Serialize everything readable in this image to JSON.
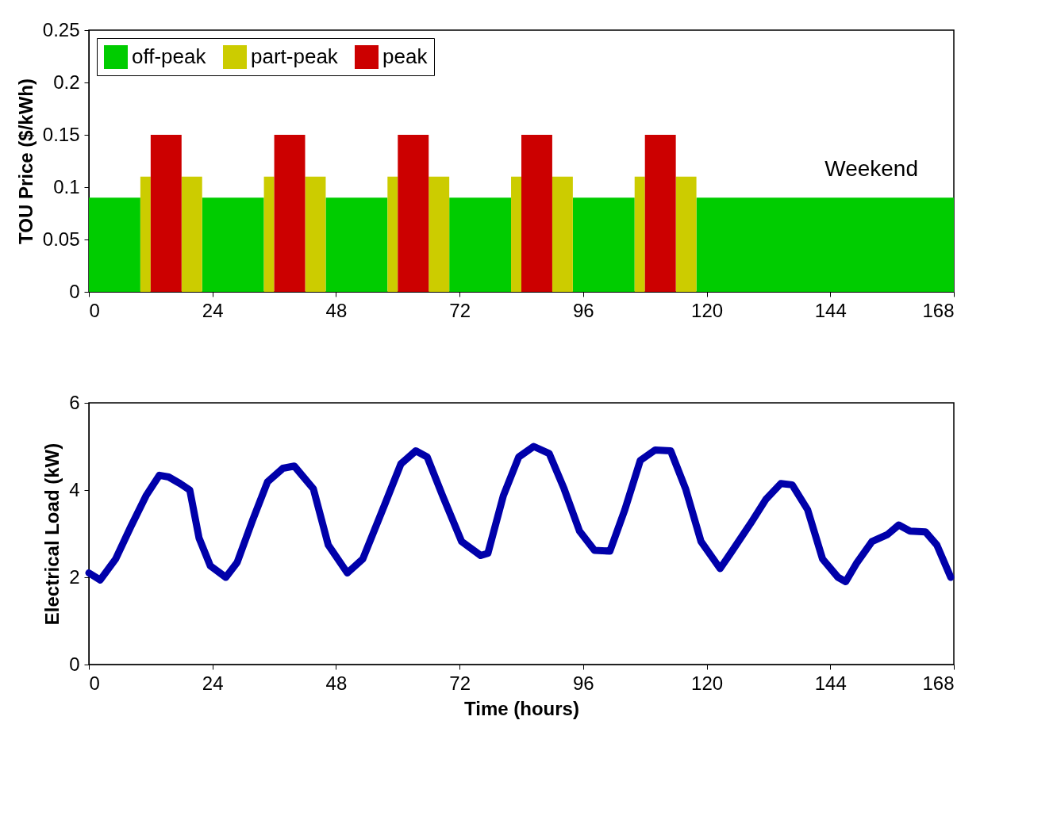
{
  "chart_data": [
    {
      "type": "histogram",
      "ylabel": "TOU Price ($/kWh)",
      "xlim": [
        0,
        168
      ],
      "xticks": [
        0,
        24,
        48,
        72,
        96,
        120,
        144,
        168
      ],
      "ylim": [
        0,
        0.25
      ],
      "yticks": [
        0,
        0.05,
        0.1,
        0.15,
        0.2,
        0.25
      ],
      "legend": "top left",
      "annotations": [
        "Weekend"
      ],
      "bins": [
        0,
        10,
        12,
        18,
        22,
        34,
        36,
        42,
        46,
        58,
        60,
        66,
        70,
        82,
        84,
        90,
        94,
        106,
        108,
        114,
        118,
        168
      ],
      "series": [
        {
          "name": "off-peak",
          "color": "#00cc00",
          "values": [
            0.09,
            null,
            null,
            null,
            0.09,
            null,
            null,
            null,
            0.09,
            null,
            null,
            null,
            0.09,
            null,
            null,
            null,
            0.09,
            null,
            null,
            null,
            0.09
          ]
        },
        {
          "name": "part-peak",
          "color": "#cccc00",
          "values": [
            null,
            0.11,
            null,
            0.11,
            null,
            0.11,
            null,
            0.11,
            null,
            0.11,
            null,
            0.11,
            null,
            0.11,
            null,
            0.11,
            null,
            0.11,
            null,
            0.11,
            null
          ]
        },
        {
          "name": "peak",
          "color": "#cc0000",
          "values": [
            null,
            null,
            0.15,
            null,
            null,
            null,
            0.15,
            null,
            null,
            null,
            0.15,
            null,
            null,
            null,
            0.15,
            null,
            null,
            null,
            0.15,
            null,
            null
          ]
        }
      ]
    },
    {
      "type": "line",
      "xlabel": "Time (hours)",
      "ylabel": "Electrical Load (kW)",
      "xlim": [
        0,
        168
      ],
      "xticks": [
        0,
        24,
        48,
        72,
        96,
        120,
        144,
        168
      ],
      "ylim": [
        0,
        6
      ],
      "yticks": [
        0,
        2,
        4,
        6
      ],
      "series": [
        {
          "color": "#0000aa",
          "x": [
            0,
            2.2,
            5.2,
            8.1,
            11.1,
            13.7,
            15.5,
            17.7,
            19.6,
            21.4,
            23.6,
            26.6,
            28.8,
            31.8,
            34.7,
            37.7,
            39.9,
            43.6,
            46.5,
            50.2,
            53.2,
            57.6,
            60.6,
            63.5,
            65.7,
            68.7,
            72.4,
            76.1,
            77.5,
            80.5,
            83.5,
            86.4,
            89.4,
            92.3,
            95.3,
            98.2,
            101.2,
            104.1,
            107.1,
            110,
            113,
            115.9,
            118.9,
            122.6,
            124.8,
            128.5,
            131.5,
            134.4,
            136.6,
            139.6,
            142.5,
            145.5,
            147,
            149.2,
            152.1,
            155.1,
            157.3,
            159.5,
            162.5,
            164.7,
            167.4
          ],
          "values": [
            2.1,
            1.94,
            2.42,
            3.15,
            3.87,
            4.34,
            4.3,
            4.15,
            4.0,
            2.9,
            2.26,
            2.0,
            2.34,
            3.31,
            4.19,
            4.5,
            4.55,
            4.03,
            2.74,
            2.1,
            2.42,
            3.71,
            4.6,
            4.9,
            4.76,
            3.87,
            2.82,
            2.5,
            2.55,
            3.87,
            4.76,
            5.0,
            4.84,
            4.03,
            3.06,
            2.62,
            2.6,
            3.55,
            4.68,
            4.92,
            4.9,
            4.03,
            2.82,
            2.2,
            2.58,
            3.23,
            3.79,
            4.15,
            4.12,
            3.55,
            2.42,
            2.0,
            1.9,
            2.34,
            2.82,
            2.98,
            3.2,
            3.06,
            3.04,
            2.74,
            2.0
          ]
        }
      ]
    }
  ]
}
